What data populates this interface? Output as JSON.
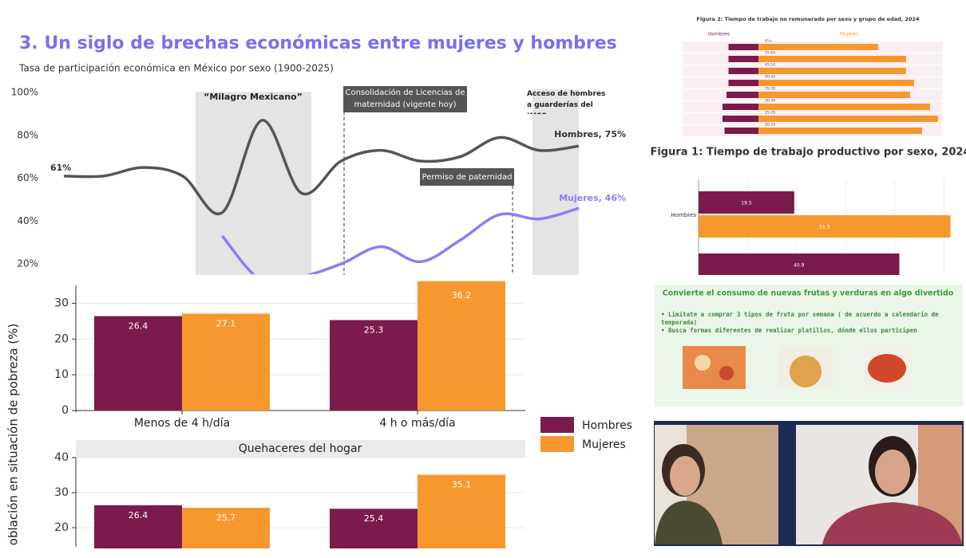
{
  "participation_slide": {
    "title": "3. Un siglo de brechas económicas entre mujeres y hombres",
    "subtitle": "Tasa de participación económica en México por sexo (1900-2025)",
    "ylim": [
      15,
      100
    ],
    "yticks": [
      {
        "value": 100,
        "label": "100%"
      },
      {
        "value": 80,
        "label": "80%"
      },
      {
        "value": 60,
        "label": "60%"
      },
      {
        "value": 40,
        "label": "40%"
      },
      {
        "value": 20,
        "label": "20%"
      }
    ],
    "annotations": [
      "“Milagro Mexicano”",
      "Consolidación de Licencias de maternidad (vigente hoy)",
      "Acceso de hombres a guarderías del IMSS",
      "Permiso de paternidad"
    ],
    "series": [
      {
        "name": "Hombres",
        "color": "#555555",
        "end_label": "Hombres, 75%",
        "start_label": "61%",
        "values": [
          61,
          61,
          65,
          61,
          44,
          87,
          53,
          68,
          73,
          68,
          70,
          79,
          73,
          75
        ]
      },
      {
        "name": "Mujeres",
        "color": "#8a7ff0",
        "end_label": "Mujeres, 46%",
        "values": [
          null,
          null,
          null,
          null,
          33,
          12,
          14,
          20,
          28,
          21,
          31,
          43,
          41,
          46
        ]
      }
    ]
  },
  "poverty_chart": {
    "y_axis_label": "oblación en situación de pobreza (%)",
    "facets": [
      {
        "categories": [
          "Menos de 4 h/día",
          "4 h o más/día"
        ],
        "ylim": [
          0,
          35
        ],
        "yticks": [
          0,
          10,
          20,
          30
        ],
        "series": [
          {
            "name": "Hombres",
            "color": "#7b1b4b",
            "values": [
              26.4,
              25.3
            ]
          },
          {
            "name": "Mujeres",
            "color": "#f7982e",
            "values": [
              27.1,
              36.2
            ]
          }
        ]
      },
      {
        "title": "Quehaceres del hogar",
        "ylim": [
          15,
          40
        ],
        "yticks": [
          20,
          30,
          40
        ],
        "series": [
          {
            "name": "Hombres",
            "color": "#7b1b4b",
            "values": [
              26.4,
              25.4
            ]
          },
          {
            "name": "Mujeres",
            "color": "#f7982e",
            "values": [
              25.7,
              35.1
            ]
          }
        ]
      }
    ]
  },
  "figure2": {
    "title": "Figura 2: Tiempo de trabajo no remunerado por sexo y grupo de edad, 2024",
    "groups": [
      "65+",
      "55-64",
      "45-54",
      "40-44",
      "35-39",
      "30-34",
      "25-29",
      "20-24"
    ],
    "xlim": [
      0,
      46
    ],
    "series": [
      {
        "name": "Hombres",
        "color": "#7b1b4b",
        "values": [
          15,
          15,
          15,
          15,
          16,
          18,
          18,
          17
        ]
      },
      {
        "name": "Mujeres",
        "color": "#f7982e",
        "values": [
          30,
          37,
          37,
          39,
          38,
          43,
          45,
          41
        ]
      }
    ]
  },
  "figure1": {
    "title": "Figura 1: Tiempo de trabajo productivo por sexo, 2024",
    "categories": [
      "Hombres",
      null
    ],
    "xlim": [
      0,
      50
    ],
    "series": [
      {
        "color": "#7b1b4b",
        "values": [
          19.5,
          40.9
        ]
      },
      {
        "color": "#f7982e",
        "values": [
          51.3,
          null
        ]
      }
    ]
  },
  "tips_slide": {
    "title": "Convierte el consumo de nuevas frutas y verduras en algo divertido",
    "bullets": [
      "Limítate a comprar 3 tipos de fruta por semana ( de acuerdo a calendario de temporada)",
      "Busca formas diferentes de realizar platillos, dónde ellos participen"
    ]
  }
}
